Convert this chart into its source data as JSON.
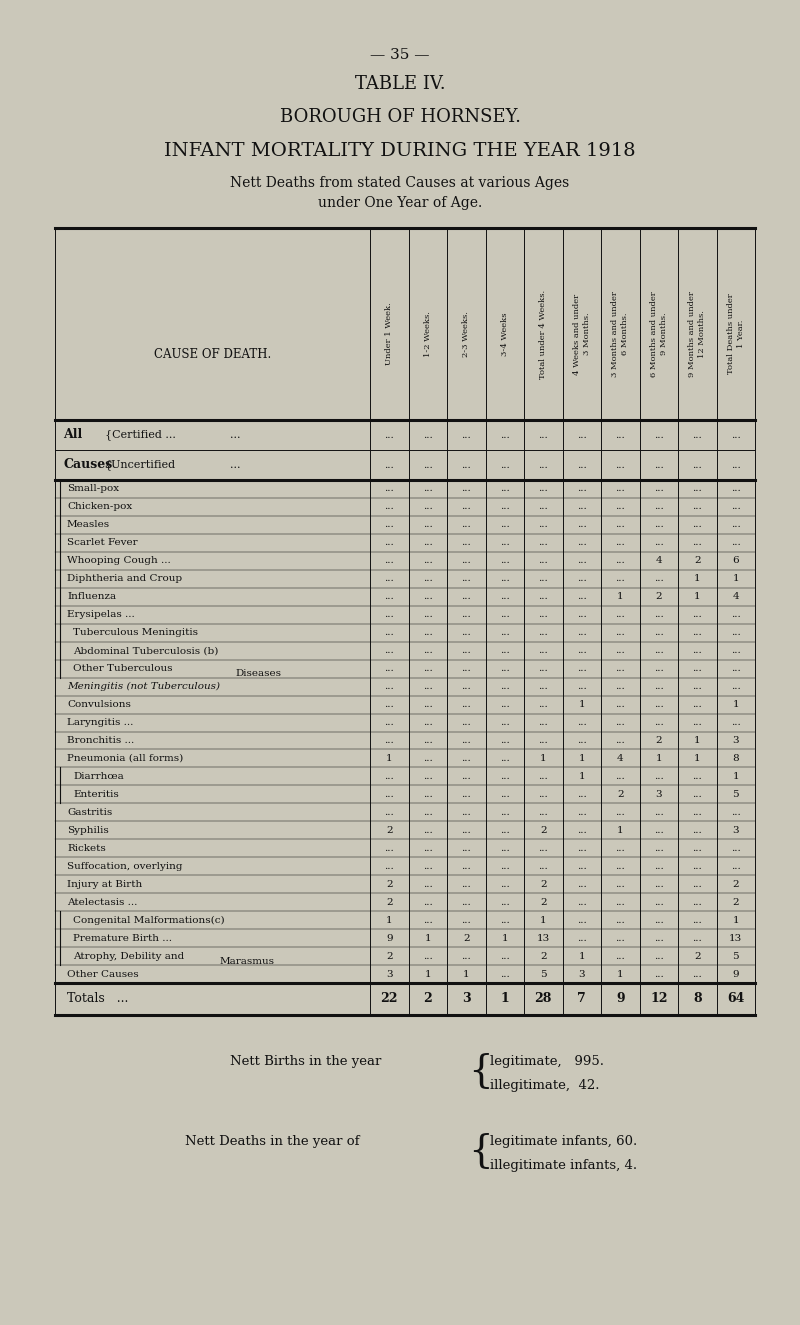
{
  "page_number": "35",
  "title1": "TABLE IV.",
  "title2": "BOROUGH OF HORNSEY.",
  "title3": "INFANT MORTALITY DURING THE YEAR 1918",
  "subtitle1": "Nett Deaths from stated Causes at various Ages",
  "subtitle2": "under One Year of Age.",
  "col_headers": [
    "Under 1 Week.",
    "1-2 Weeks.",
    "2-3 Weeks.",
    "3-4 Weeks",
    "Total under 4 Weeks.",
    "4 Weeks and under\n3 Months.",
    "3 Months and under\n6 Months.",
    "6 Months and under\n9 Months.",
    "9 Months and under\n12 Months.",
    "Total Deaths under\n1 Year."
  ],
  "cause_col_header": "CAUSE OF DEATH.",
  "all_causes_rows": [
    {
      "label1": "All",
      "label2": "Certified ...",
      "dots": "...",
      "vals": [
        "...",
        "...",
        "...",
        "...",
        "...",
        "...",
        "...",
        "...",
        "...",
        "..."
      ]
    },
    {
      "label1": "Causes",
      "label2": "Uncertified",
      "dots": "...",
      "vals": [
        "...",
        "...",
        "...",
        "...",
        "...",
        "...",
        "...",
        "...",
        "...",
        "..."
      ]
    }
  ],
  "main_rows": [
    {
      "cause": "Small-pox",
      "dots": "   ...    ...    ...",
      "vals": [
        "...",
        "...",
        "...",
        "...",
        "...",
        "...",
        "...",
        "...",
        "...",
        "..."
      ],
      "indent": 0.12
    },
    {
      "cause": "Chicken-pox",
      "dots": "   ...    ...",
      "vals": [
        "...",
        "...",
        "...",
        "...",
        "...",
        "...",
        "...",
        "...",
        "...",
        "..."
      ],
      "indent": 0.12
    },
    {
      "cause": "Measles",
      "dots": "   ...    ...",
      "vals": [
        "...",
        "...",
        "...",
        "...",
        "...",
        "...",
        "...",
        "...",
        "...",
        "..."
      ],
      "indent": 0.12
    },
    {
      "cause": "Scarlet Fever",
      "dots": "   ...",
      "vals": [
        "...",
        "...",
        "...",
        "...",
        "...",
        "...",
        "...",
        "...",
        "...",
        "..."
      ],
      "indent": 0.12
    },
    {
      "cause": "Whooping Cough ...",
      "dots": "   ...",
      "vals": [
        "...",
        "...",
        "...",
        "...",
        "...",
        "...",
        "...",
        "4",
        "2",
        "6"
      ],
      "indent": 0.12
    },
    {
      "cause": "Diphtheria and Croup",
      "dots": "   ...",
      "vals": [
        "...",
        "...",
        "...",
        "...",
        "...",
        "...",
        "...",
        "...",
        "1",
        "1"
      ],
      "indent": 0.12
    },
    {
      "cause": "Influenza",
      "dots": "   ...    ...    ...",
      "vals": [
        "...",
        "...",
        "...",
        "...",
        "...",
        "...",
        "1",
        "2",
        "1",
        "4"
      ],
      "indent": 0.12
    },
    {
      "cause": "Erysipelas ...",
      "dots": "   ...    ...",
      "vals": [
        "...",
        "...",
        "...",
        "...",
        "...",
        "...",
        "...",
        "...",
        "...",
        "..."
      ],
      "indent": 0.12
    },
    {
      "cause": "Tuberculous Meningitis",
      "dots": "   .",
      "vals": [
        "...",
        "...",
        "...",
        "...",
        "...",
        "...",
        "...",
        "...",
        "...",
        "..."
      ],
      "indent": 0.18
    },
    {
      "cause": "Abdominal Tuberculosis (b)",
      "dots": "",
      "vals": [
        "...",
        "...",
        "...",
        "...",
        "...",
        "...",
        "...",
        "...",
        "...",
        "..."
      ],
      "indent": 0.18
    },
    {
      "cause": "Other Tuberculous",
      "dots": "",
      "vals": [
        "...",
        "...",
        "...",
        "...",
        "...",
        "...",
        "...",
        "...",
        "...",
        "..."
      ],
      "indent": 0.18,
      "second_line": "Diseases",
      "second_line_indent": 1.8
    },
    {
      "cause": "Meningitis (not Tuberculous)",
      "dots": "",
      "vals": [
        "...",
        "...",
        "...",
        "...",
        "...",
        "...",
        "...",
        "...",
        "...",
        "..."
      ],
      "indent": 0.12,
      "italic": true
    },
    {
      "cause": "Convulsions",
      "dots": "   ...    ...",
      "vals": [
        "...",
        "...",
        "...",
        "...",
        "...",
        "1",
        "...",
        "...",
        "...",
        "1"
      ],
      "indent": 0.12
    },
    {
      "cause": "Laryngitis ...",
      "dots": "   ...",
      "vals": [
        "...",
        "...",
        "...",
        "...",
        "...",
        "...",
        "...",
        "...",
        "...",
        "..."
      ],
      "indent": 0.12
    },
    {
      "cause": "Bronchitis ...",
      "dots": "   ...",
      "vals": [
        "...",
        "...",
        "...",
        "...",
        "...",
        "...",
        "...",
        "2",
        "1",
        "3"
      ],
      "indent": 0.12
    },
    {
      "cause": "Pneumonia (all forms)",
      "dots": "   ...",
      "vals": [
        "1",
        "...",
        "...",
        "...",
        "1",
        "1",
        "4",
        "1",
        "1",
        "8"
      ],
      "indent": 0.12
    },
    {
      "cause": "Diarrhœa",
      "dots": "   ...    ...    ...",
      "vals": [
        "...",
        "...",
        "...",
        "...",
        "...",
        "1",
        "...",
        "...",
        "...",
        "1"
      ],
      "indent": 0.18
    },
    {
      "cause": "Enteritis",
      "dots": "   ...    ...    ...",
      "vals": [
        "...",
        "...",
        "...",
        "...",
        "...",
        "...",
        "2",
        "3",
        "...",
        "5"
      ],
      "indent": 0.18
    },
    {
      "cause": "Gastritis",
      "dots": "   ...    ...    ...",
      "vals": [
        "...",
        "...",
        "...",
        "...",
        "...",
        "...",
        "...",
        "...",
        "...",
        "..."
      ],
      "indent": 0.12
    },
    {
      "cause": "Syphilis",
      "dots": "   ...    ..    ...",
      "vals": [
        "2",
        "...",
        "...",
        "...",
        "2",
        "...",
        "1",
        "...",
        "...",
        "3"
      ],
      "indent": 0.12
    },
    {
      "cause": "Rickets",
      "dots": "   ...    ...    ...",
      "vals": [
        "...",
        "...",
        "...",
        "...",
        "...",
        "...",
        "...",
        "...",
        "...",
        "..."
      ],
      "indent": 0.12
    },
    {
      "cause": "Suffocation, overlying",
      "dots": "   ...",
      "vals": [
        "...",
        "...",
        "...",
        "...",
        "...",
        "...",
        "...",
        "...",
        "...",
        "..."
      ],
      "indent": 0.12
    },
    {
      "cause": "Injury at Birth",
      "dots": "   ...    ...",
      "vals": [
        "2",
        "...",
        "...",
        "...",
        "2",
        "...",
        "...",
        "...",
        "...",
        "2"
      ],
      "indent": 0.12
    },
    {
      "cause": "Atelectasis ...",
      "dots": "   ...",
      "vals": [
        "2",
        "...",
        "...",
        "...",
        "2",
        "...",
        "...",
        "...",
        "...",
        "2"
      ],
      "indent": 0.12
    },
    {
      "cause": "Congenital Malformations(c)",
      "dots": "",
      "vals": [
        "1",
        "...",
        "...",
        "...",
        "1",
        "...",
        "...",
        "...",
        "...",
        "1"
      ],
      "indent": 0.18
    },
    {
      "cause": "Premature Birth ...",
      "dots": "   ...",
      "vals": [
        "9",
        "1",
        "2",
        "1",
        "13",
        "...",
        "...",
        "...",
        "...",
        "13"
      ],
      "indent": 0.18
    },
    {
      "cause": "Atrophy, Debility and",
      "dots": "",
      "vals": [
        "2",
        "...",
        "...",
        "...",
        "2",
        "1",
        "...",
        "...",
        "2",
        "5"
      ],
      "indent": 0.18,
      "second_line": "Marasmus",
      "second_line_indent": 1.65
    },
    {
      "cause": "Other Causes",
      "dots": "   ...    ...",
      "vals": [
        "3",
        "1",
        "1",
        "...",
        "5",
        "3",
        "1",
        "...",
        "...",
        "9"
      ],
      "indent": 0.12
    }
  ],
  "totals_row": {
    "cause": "Totals",
    "vals": [
      "22",
      "2",
      "3",
      "1",
      "28",
      "7",
      "9",
      "12",
      "8",
      "64"
    ]
  },
  "bg_color": "#cbc8ba",
  "text_color": "#111111",
  "line_color": "#111111"
}
